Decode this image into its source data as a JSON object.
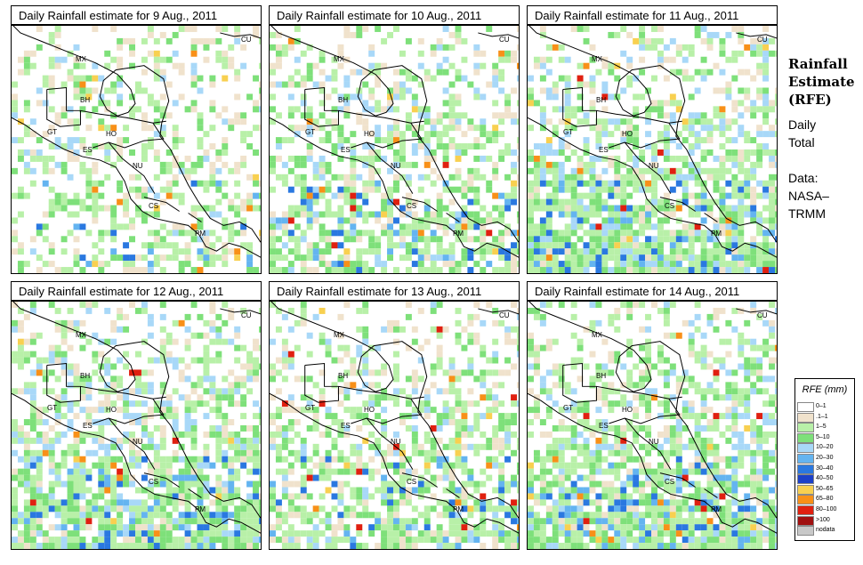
{
  "panels": [
    {
      "title": "Daily Rainfall estimate for  9 Aug., 2011",
      "intensity": 1
    },
    {
      "title": "Daily Rainfall estimate for  10 Aug., 2011",
      "intensity": 2
    },
    {
      "title": "Daily Rainfall estimate for  11 Aug., 2011",
      "intensity": 3
    },
    {
      "title": "Daily Rainfall estimate for  12 Aug., 2011",
      "intensity": 3
    },
    {
      "title": "Daily Rainfall estimate for  13 Aug., 2011",
      "intensity": 2
    },
    {
      "title": "Daily Rainfall estimate for  14 Aug., 2011",
      "intensity": 3
    }
  ],
  "country_labels": [
    "MX",
    "CU",
    "BH",
    "GT",
    "HO",
    "ES",
    "NU",
    "CS",
    "PM"
  ],
  "side": {
    "title_line1": "Rainfall",
    "title_line2": "Estimate",
    "title_line3": "(RFE)",
    "daily": "Daily",
    "total": "Total",
    "data_label": "Data:",
    "source_line1": "NASA–",
    "source_line2": "TRMM"
  },
  "legend": {
    "title": "RFE (mm)",
    "items": [
      {
        "label": "0–1",
        "color": "#ffffff"
      },
      {
        "label": ".1–1",
        "color": "#f0e2cc"
      },
      {
        "label": "1–5",
        "color": "#b8f0a8"
      },
      {
        "label": "5–10",
        "color": "#7ee07a"
      },
      {
        "label": "10–20",
        "color": "#a8d8f8"
      },
      {
        "label": "20–30",
        "color": "#64b4f0"
      },
      {
        "label": "30–40",
        "color": "#2a78e0"
      },
      {
        "label": "40–50",
        "color": "#1c40c8"
      },
      {
        "label": "50–65",
        "color": "#f8d050"
      },
      {
        "label": "65–80",
        "color": "#f89018"
      },
      {
        "label": "80–100",
        "color": "#e02010"
      },
      {
        "label": ">100",
        "color": "#a01010"
      },
      {
        "label": "nodata",
        "color": "#c8c8c8"
      }
    ]
  }
}
